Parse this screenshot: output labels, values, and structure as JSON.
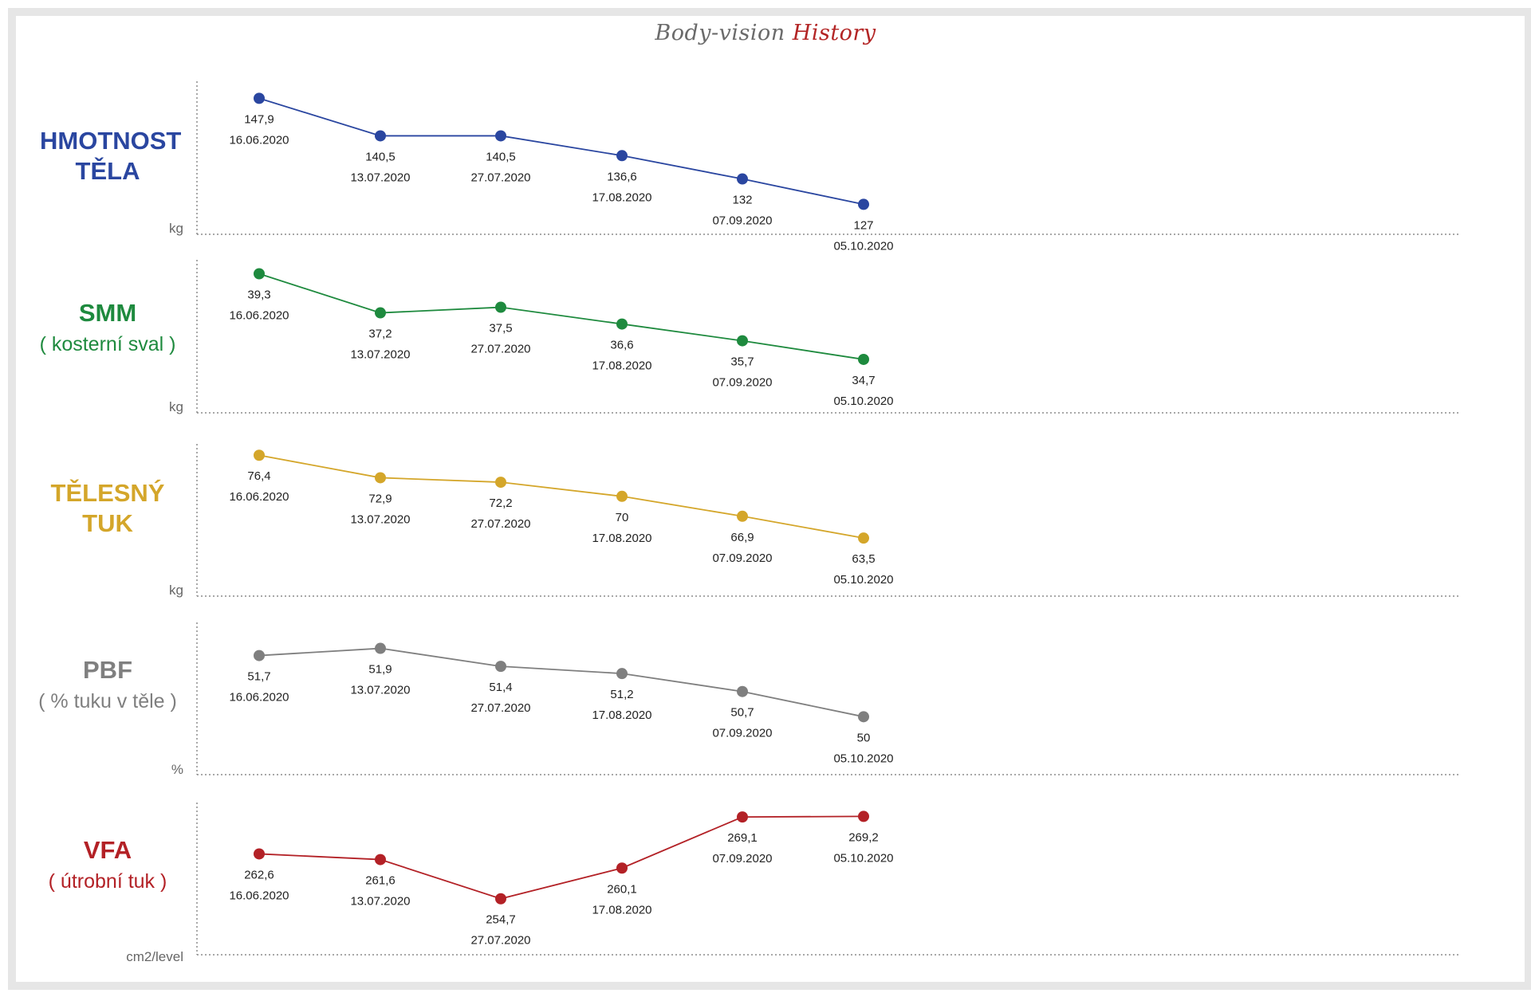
{
  "title": {
    "part1": "Body-vision",
    "part2": "History"
  },
  "colors": {
    "blue": "#2a46a0",
    "green": "#1e8a3e",
    "gold": "#d4a62a",
    "gray": "#7f7f7f",
    "red": "#b32126",
    "axis": "#8c8c8c",
    "text": "#222222"
  },
  "dates": [
    "16.06.2020",
    "13.07.2020",
    "27.07.2020",
    "17.08.2020",
    "07.09.2020",
    "05.10.2020"
  ],
  "panels": [
    {
      "main": "HMOTNOST TĚLA",
      "sub": "",
      "unit": "kg",
      "color": "blue"
    },
    {
      "main": "SMM",
      "sub": "( kosterní sval )",
      "unit": "kg",
      "color": "green"
    },
    {
      "main": "TĚLESNÝ TUK",
      "sub": "",
      "unit": "kg",
      "color": "gold"
    },
    {
      "main": "PBF",
      "sub": "( % tuku v těle )",
      "unit": "%",
      "color": "gray"
    },
    {
      "main": "VFA",
      "sub": "( útrobní tuk )",
      "unit": "cm2/level",
      "color": "red"
    }
  ],
  "chart_data": [
    {
      "type": "line",
      "title": "HMOTNOST TĚLA",
      "ylabel": "kg",
      "x": [
        "16.06.2020",
        "13.07.2020",
        "27.07.2020",
        "17.08.2020",
        "07.09.2020",
        "05.10.2020"
      ],
      "values": [
        147.9,
        140.5,
        140.5,
        136.6,
        132,
        127
      ],
      "labels": [
        "147,9",
        "140,5",
        "140,5",
        "136,6",
        "132",
        "127"
      ],
      "ylim": [
        117,
        150
      ],
      "grid": false
    },
    {
      "type": "line",
      "title": "SMM ( kosterní sval )",
      "ylabel": "kg",
      "x": [
        "16.06.2020",
        "13.07.2020",
        "27.07.2020",
        "17.08.2020",
        "07.09.2020",
        "05.10.2020"
      ],
      "values": [
        39.3,
        37.2,
        37.5,
        36.6,
        35.7,
        34.7
      ],
      "labels": [
        "39,3",
        "37,2",
        "37,5",
        "36,6",
        "35,7",
        "34,7"
      ],
      "ylim": [
        32.6,
        39.75
      ],
      "grid": false
    },
    {
      "type": "line",
      "title": "TĚLESNÝ TUK",
      "ylabel": "kg",
      "x": [
        "16.06.2020",
        "13.07.2020",
        "27.07.2020",
        "17.08.2020",
        "07.09.2020",
        "05.10.2020"
      ],
      "values": [
        76.4,
        72.9,
        72.2,
        70,
        66.9,
        63.5
      ],
      "labels": [
        "76,4",
        "72,9",
        "72,2",
        "70",
        "66,9",
        "63,5"
      ],
      "ylim": [
        55.2,
        77.3
      ],
      "grid": false
    },
    {
      "type": "line",
      "title": "PBF ( % tuku v těle )",
      "ylabel": "%",
      "x": [
        "16.06.2020",
        "13.07.2020",
        "27.07.2020",
        "17.08.2020",
        "07.09.2020",
        "05.10.2020"
      ],
      "values": [
        51.7,
        51.9,
        51.4,
        51.2,
        50.7,
        50
      ],
      "labels": [
        "51,7",
        "51,9",
        "51,4",
        "51,2",
        "50,7",
        "50"
      ],
      "ylim": [
        48.7,
        52.2
      ],
      "grid": false
    },
    {
      "type": "line",
      "title": "VFA ( útrobní tuk )",
      "ylabel": "cm2/level",
      "x": [
        "16.06.2020",
        "13.07.2020",
        "27.07.2020",
        "17.08.2020",
        "07.09.2020",
        "05.10.2020"
      ],
      "values": [
        262.6,
        261.6,
        254.7,
        260.1,
        269.1,
        269.2
      ],
      "labels": [
        "262,6",
        "261,6",
        "254,7",
        "260,1",
        "269,1",
        "269,2"
      ],
      "ylim": [
        244.0,
        270.8
      ],
      "grid": false
    }
  ]
}
